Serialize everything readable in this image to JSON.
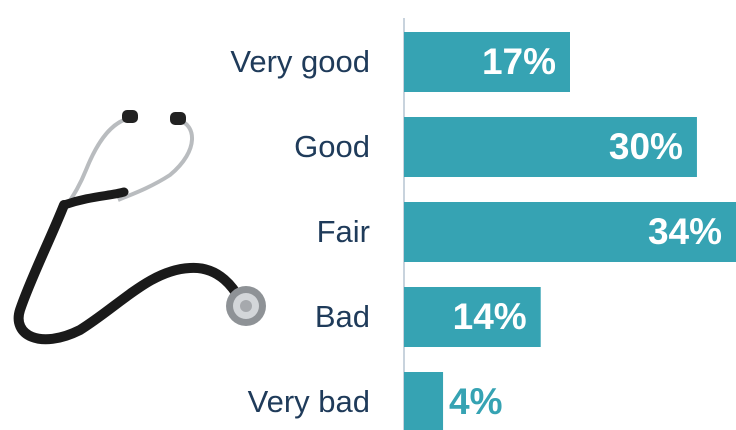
{
  "chart_data": {
    "type": "bar",
    "orientation": "horizontal",
    "categories": [
      "Very good",
      "Good",
      "Fair",
      "Bad",
      "Very bad"
    ],
    "values": [
      17,
      30,
      34,
      14,
      4
    ],
    "value_labels": [
      "17%",
      "30%",
      "34%",
      "14%",
      "4%"
    ],
    "color": "#36a3b3",
    "xlim": [
      0,
      34
    ]
  }
}
